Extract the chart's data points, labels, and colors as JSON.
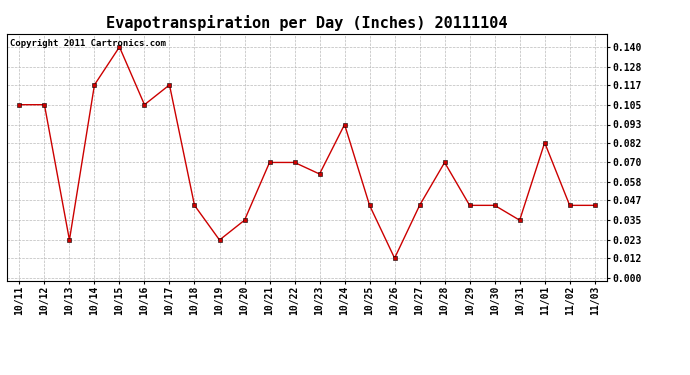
{
  "title": "Evapotranspiration per Day (Inches) 20111104",
  "copyright": "Copyright 2011 Cartronics.com",
  "x_labels": [
    "10/11",
    "10/12",
    "10/13",
    "10/14",
    "10/15",
    "10/16",
    "10/17",
    "10/18",
    "10/19",
    "10/20",
    "10/21",
    "10/22",
    "10/23",
    "10/24",
    "10/25",
    "10/26",
    "10/27",
    "10/28",
    "10/29",
    "10/30",
    "10/31",
    "11/01",
    "11/02",
    "11/03"
  ],
  "y_values": [
    0.105,
    0.105,
    0.023,
    0.117,
    0.14,
    0.105,
    0.117,
    0.044,
    0.023,
    0.035,
    0.07,
    0.07,
    0.063,
    0.093,
    0.044,
    0.012,
    0.044,
    0.07,
    0.044,
    0.044,
    0.035,
    0.082,
    0.044,
    0.044
  ],
  "y_ticks": [
    0.0,
    0.012,
    0.023,
    0.035,
    0.047,
    0.058,
    0.07,
    0.082,
    0.093,
    0.105,
    0.117,
    0.128,
    0.14
  ],
  "line_color": "#cc0000",
  "marker": "s",
  "marker_size": 2.5,
  "background_color": "#ffffff",
  "plot_bg_color": "#ffffff",
  "grid_color": "#bbbbbb",
  "title_fontsize": 11,
  "copyright_fontsize": 6.5,
  "tick_fontsize": 7,
  "ylim_min": -0.002,
  "ylim_max": 0.148
}
